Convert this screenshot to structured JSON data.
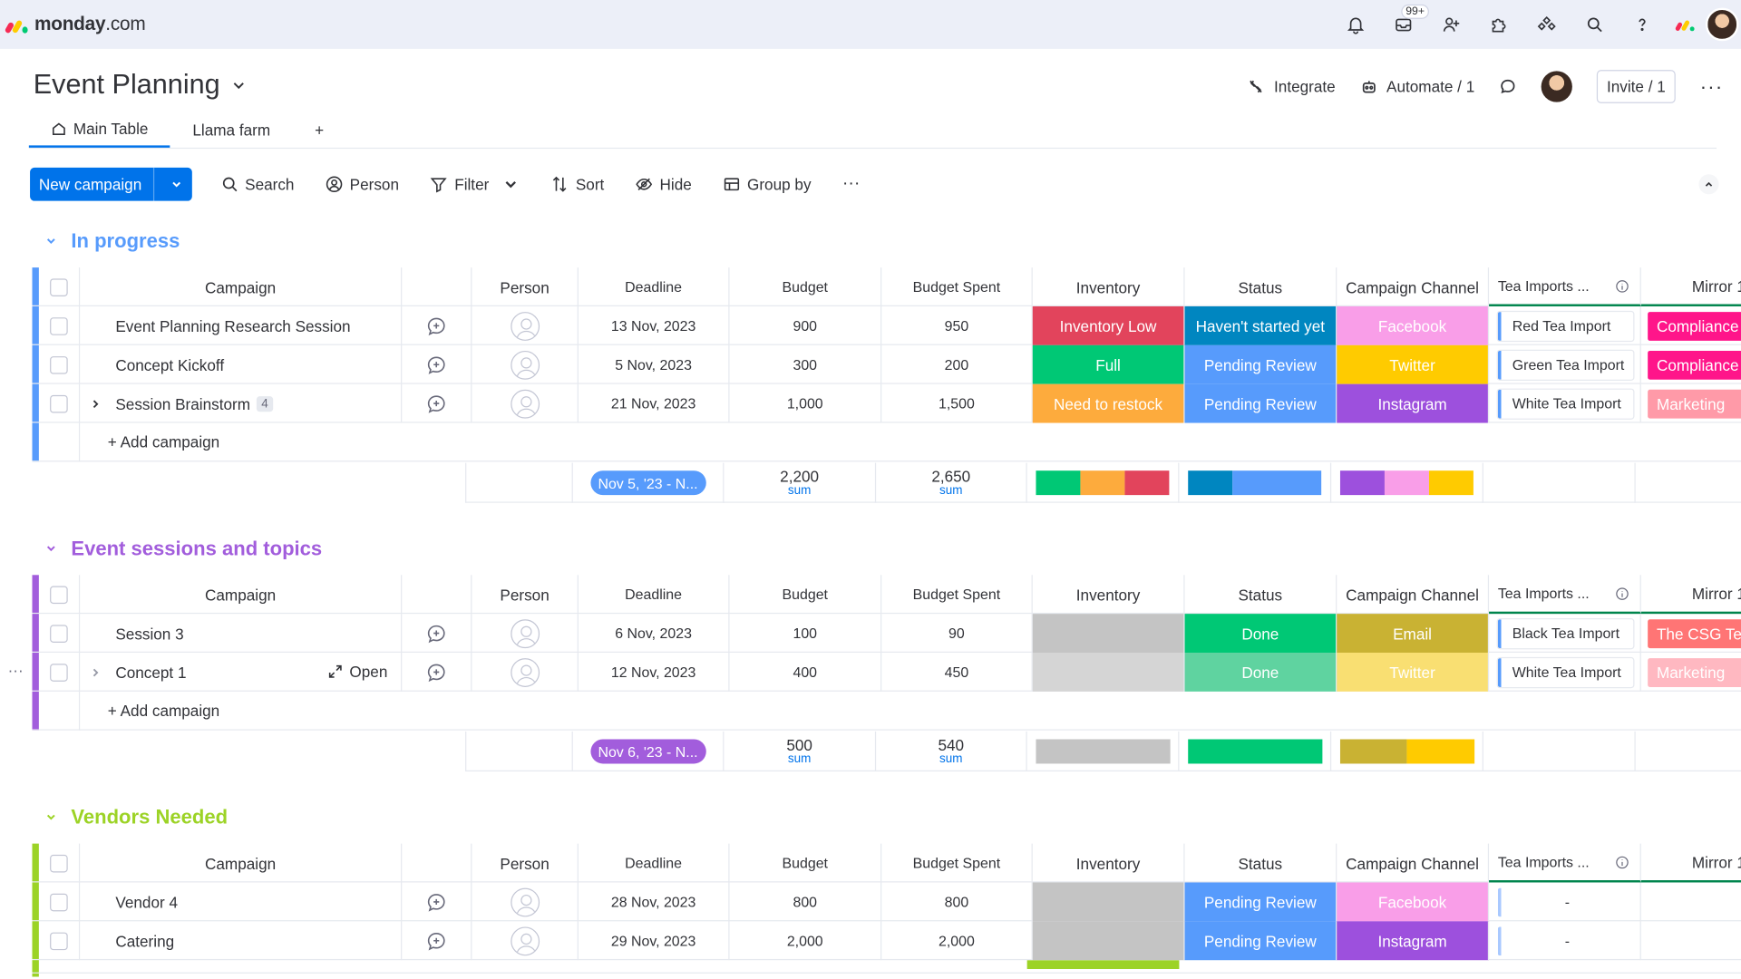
{
  "app": {
    "logo_bold": "monday",
    "logo_rest": ".com",
    "notification_badge": "99+"
  },
  "board": {
    "title": "Event Planning",
    "integrate": "Integrate",
    "automate": "Automate / 1",
    "invite": "Invite / 1",
    "more": "···"
  },
  "tabs": [
    {
      "label": "Main Table"
    },
    {
      "label": "Llama farm"
    },
    {
      "label": "+"
    }
  ],
  "toolbar": {
    "new_item": "New campaign",
    "search": "Search",
    "person": "Person",
    "filter": "Filter",
    "sort": "Sort",
    "hide": "Hide",
    "group_by": "Group by",
    "more": "···"
  },
  "columns": [
    "Campaign",
    "Person",
    "Deadline",
    "Budget",
    "Budget Spent",
    "Inventory",
    "Status",
    "Campaign Channel",
    "Tea Imports ...",
    "Mirror 1"
  ],
  "colors": {
    "blue": "#579bfc",
    "purple": "#a25ddc",
    "lime": "#9cd326",
    "red": "#e2445c",
    "green": "#00c875",
    "orange": "#fdab3d",
    "darkblue": "#0086c0",
    "lightblue": "#579bfc",
    "pink": "#f99ee8",
    "yellow": "#ffcb00",
    "violet": "#9d50dd",
    "gold": "#c9b233",
    "grey": "#c4c4c4",
    "magenta": "#ff158a",
    "salmon": "#ff9aa8",
    "coral": "#ff7575"
  },
  "groups": [
    {
      "title": "In progress",
      "color": "#579bfc",
      "add_label": "+ Add campaign",
      "rows": [
        {
          "name": "Event Planning Research Session",
          "deadline": "13 Nov, 2023",
          "budget": "900",
          "spent": "950",
          "inventory": "Inventory Low",
          "inventory_color": "#e2445c",
          "status": "Haven't started yet",
          "status_color": "#0086c0",
          "channel": "Facebook",
          "channel_color": "#f99ee8",
          "tea": "Red Tea Import",
          "mirror": "Compliance",
          "mirror_color": "#ff158a"
        },
        {
          "name": "Concept Kickoff",
          "deadline": "5 Nov, 2023",
          "budget": "300",
          "spent": "200",
          "inventory": "Full",
          "inventory_color": "#00c875",
          "status": "Pending Review",
          "status_color": "#579bfc",
          "channel": "Twitter",
          "channel_color": "#ffcb00",
          "tea": "Green Tea Import",
          "mirror": "Compliance",
          "mirror_color": "#ff158a"
        },
        {
          "name": "Session Brainstorm",
          "count": "4",
          "deadline": "21 Nov, 2023",
          "budget": "1,000",
          "spent": "1,500",
          "inventory": "Need to restock",
          "inventory_color": "#fdab3d",
          "status": "Pending Review",
          "status_color": "#579bfc",
          "channel": "Instagram",
          "channel_color": "#9d50dd",
          "tea": "White Tea Import",
          "mirror": "Marketing",
          "mirror_color": "#ff9aa8"
        }
      ],
      "summary": {
        "date_range": "Nov 5, '23 - N...",
        "budget_sum": "2,200",
        "spent_sum": "2,650",
        "sum_label": "sum"
      }
    },
    {
      "title": "Event sessions and topics",
      "color": "#a25ddc",
      "add_label": "+ Add campaign",
      "rows": [
        {
          "name": "Session 3",
          "deadline": "6 Nov, 2023",
          "budget": "100",
          "spent": "90",
          "inventory": "",
          "inventory_color": "#c4c4c4",
          "status": "Done",
          "status_color": "#00c875",
          "channel": "Email",
          "channel_color": "#c9b233",
          "tea": "Black Tea Import",
          "mirror": "The CSG Team",
          "mirror_color": "#ff7575"
        },
        {
          "name": "Concept 1",
          "open_label": "Open",
          "deadline": "12 Nov, 2023",
          "budget": "400",
          "spent": "450",
          "inventory": "",
          "inventory_color": "#d5d5d5",
          "status": "Done",
          "status_color": "#5fd3a0",
          "channel": "Twitter",
          "channel_color": "#f9df72",
          "tea": "White Tea Import",
          "mirror": "Marketing",
          "mirror_color": "#ffb8c1"
        }
      ],
      "summary": {
        "date_range": "Nov 6, '23 - N...",
        "budget_sum": "500",
        "spent_sum": "540",
        "sum_label": "sum"
      }
    },
    {
      "title": "Vendors Needed",
      "color": "#9cd326",
      "rows": [
        {
          "name": "Vendor 4",
          "deadline": "28 Nov, 2023",
          "budget": "800",
          "spent": "800",
          "inventory": "",
          "inventory_color": "#c4c4c4",
          "status": "Pending Review",
          "status_color": "#579bfc",
          "channel": "Facebook",
          "channel_color": "#f99ee8",
          "tea": "-"
        },
        {
          "name": "Catering",
          "deadline": "29 Nov, 2023",
          "budget": "2,000",
          "spent": "2,000",
          "inventory": "",
          "inventory_color": "#c4c4c4",
          "status": "Pending Review",
          "status_color": "#579bfc",
          "channel": "Instagram",
          "channel_color": "#9d50dd",
          "tea": "-"
        }
      ]
    }
  ]
}
